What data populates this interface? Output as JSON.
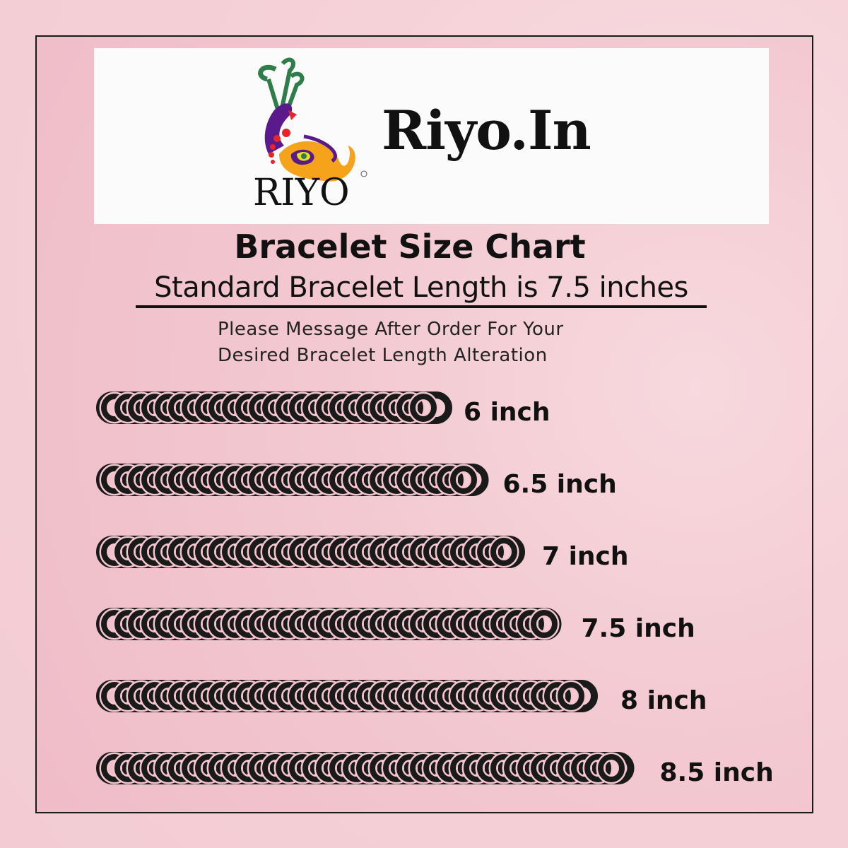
{
  "brand": {
    "logo_text": "RIYO",
    "name": "Riyo.In"
  },
  "title": "Bracelet Size Chart",
  "subtitle": "Standard Bracelet Length is 7.5 inches",
  "note": [
    "Please Message After Order For Your",
    "Desired Bracelet Length Alteration"
  ],
  "sizes": [
    {
      "inches": 6,
      "label": "6 inch"
    },
    {
      "inches": 6.5,
      "label": "6.5 inch"
    },
    {
      "inches": 7,
      "label": "7 inch"
    },
    {
      "inches": 7.5,
      "label": "7.5 inch"
    },
    {
      "inches": 8,
      "label": "8 inch"
    },
    {
      "inches": 8.5,
      "label": "8.5 inch"
    }
  ],
  "colors": {
    "background": "#f3c9d1",
    "chain": "#1a1a1a",
    "banner": "#fbfbfb"
  }
}
